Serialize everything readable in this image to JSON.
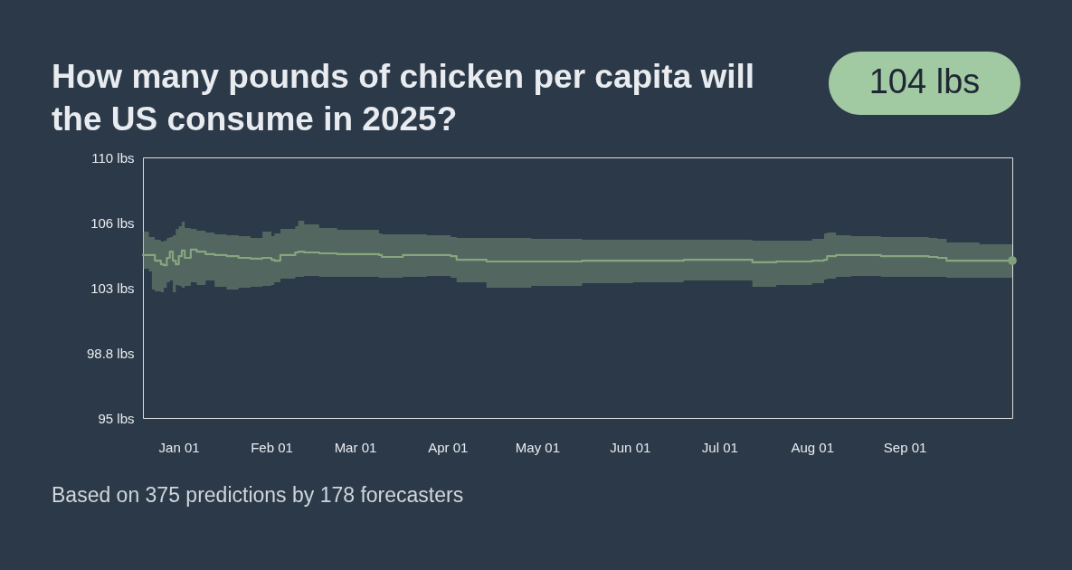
{
  "chart_data": {
    "type": "step",
    "title": "How many pounds of chicken per capita will the US consume in 2025?",
    "annotations": [
      "104 lbs",
      "Based on 375 predictions by 178 forecasters"
    ],
    "xlim": [
      "2024-12-20",
      "2025-10-07"
    ],
    "xticks": [
      {
        "value": "2025-01-01",
        "label": "Jan 01"
      },
      {
        "value": "2025-02-01",
        "label": "Feb 01"
      },
      {
        "value": "2025-03-01",
        "label": "Mar 01"
      },
      {
        "value": "2025-04-01",
        "label": "Apr 01"
      },
      {
        "value": "2025-05-01",
        "label": "May 01"
      },
      {
        "value": "2025-06-01",
        "label": "Jun 01"
      },
      {
        "value": "2025-07-01",
        "label": "Jul 01"
      },
      {
        "value": "2025-08-01",
        "label": "Aug 01"
      },
      {
        "value": "2025-09-01",
        "label": "Sep 01"
      }
    ],
    "ylim": [
      95,
      110
    ],
    "yticks": [
      {
        "value": 95,
        "label": "95 lbs"
      },
      {
        "value": 98.75,
        "label": "98.8 lbs"
      },
      {
        "value": 102.5,
        "label": "103 lbs"
      },
      {
        "value": 106.25,
        "label": "106 lbs"
      },
      {
        "value": 110,
        "label": "110 lbs"
      }
    ],
    "series": [
      {
        "color": "#87a57f",
        "x": [
          "2024-12-20",
          "2024-12-22",
          "2024-12-23",
          "2024-12-24",
          "2024-12-26",
          "2024-12-27",
          "2024-12-28",
          "2024-12-29",
          "2024-12-30",
          "2024-12-31",
          "2025-01-01",
          "2025-01-02",
          "2025-01-03",
          "2025-01-05",
          "2025-01-07",
          "2025-01-10",
          "2025-01-13",
          "2025-01-17",
          "2025-01-21",
          "2025-01-25",
          "2025-01-29",
          "2025-02-01",
          "2025-02-02",
          "2025-02-04",
          "2025-02-09",
          "2025-02-10",
          "2025-02-12",
          "2025-02-17",
          "2025-02-23",
          "2025-03-09",
          "2025-03-10",
          "2025-03-17",
          "2025-03-25",
          "2025-04-02",
          "2025-04-04",
          "2025-04-14",
          "2025-04-29",
          "2025-05-16",
          "2025-06-02",
          "2025-06-19",
          "2025-06-30",
          "2025-07-12",
          "2025-07-20",
          "2025-08-01",
          "2025-08-05",
          "2025-08-06",
          "2025-08-09",
          "2025-08-14",
          "2025-08-24",
          "2025-09-09",
          "2025-09-12",
          "2025-09-15",
          "2025-09-26",
          "2025-10-07"
        ],
        "values": [
          104.38,
          104.38,
          104.38,
          104.06,
          103.85,
          103.8,
          104.22,
          104.58,
          104.06,
          103.85,
          104.32,
          104.64,
          104.22,
          104.69,
          104.58,
          104.43,
          104.38,
          104.32,
          104.22,
          104.17,
          104.22,
          104.11,
          104.06,
          104.38,
          104.53,
          104.58,
          104.53,
          104.48,
          104.43,
          104.38,
          104.27,
          104.38,
          104.38,
          104.32,
          104.11,
          104.01,
          104.01,
          104.06,
          104.06,
          104.11,
          104.11,
          103.96,
          104.01,
          104.06,
          104.11,
          104.32,
          104.38,
          104.38,
          104.32,
          104.27,
          104.22,
          104.06,
          104.06,
          104.06
        ],
        "lower": [
          103.59,
          103.44,
          102.4,
          102.29,
          102.24,
          102.5,
          102.81,
          102.92,
          102.24,
          102.66,
          102.6,
          102.5,
          102.6,
          102.81,
          102.66,
          102.92,
          102.55,
          102.4,
          102.5,
          102.55,
          102.6,
          102.66,
          102.81,
          103.02,
          103.13,
          103.13,
          103.18,
          103.13,
          103.13,
          103.07,
          103.07,
          103.13,
          103.18,
          103.07,
          102.81,
          102.5,
          102.6,
          102.76,
          102.81,
          102.92,
          102.92,
          102.55,
          102.66,
          102.76,
          102.97,
          103.02,
          103.13,
          103.18,
          103.13,
          103.13,
          103.13,
          103.07,
          103.07,
          103.02
        ],
        "upper": [
          105.73,
          105.42,
          105.42,
          105.26,
          105.16,
          105.21,
          105.36,
          105.42,
          105.52,
          105.89,
          106.04,
          106.3,
          105.94,
          105.89,
          105.78,
          105.68,
          105.57,
          105.52,
          105.47,
          105.36,
          105.73,
          105.47,
          105.63,
          105.89,
          106.04,
          106.35,
          106.15,
          105.94,
          105.83,
          105.63,
          105.57,
          105.57,
          105.52,
          105.42,
          105.36,
          105.36,
          105.31,
          105.26,
          105.26,
          105.26,
          105.26,
          105.21,
          105.21,
          105.31,
          105.63,
          105.68,
          105.52,
          105.47,
          105.42,
          105.36,
          105.31,
          105.1,
          105.0,
          104.95
        ]
      },
      {
        "type": "scatter",
        "color": "#82a07c",
        "marker": "circle",
        "x": [
          "2025-10-07"
        ],
        "values": [
          104.06
        ]
      }
    ]
  }
}
